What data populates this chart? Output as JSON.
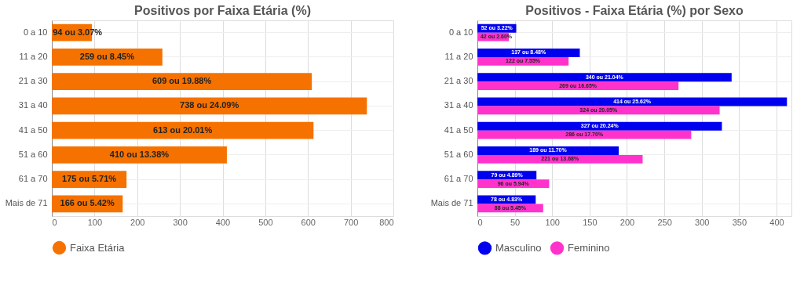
{
  "chart_data": [
    {
      "type": "bar",
      "orientation": "horizontal",
      "title": "Positivos por Faixa Etária (%)",
      "categories": [
        "0 a 10",
        "11 a 20",
        "21 a 30",
        "31 a 40",
        "41 a 50",
        "51 a 60",
        "61 a 70",
        "Mais de 71"
      ],
      "series": [
        {
          "name": "Faixa Etária",
          "color": "#f57200",
          "values": [
            94,
            259,
            609,
            738,
            613,
            410,
            175,
            166
          ],
          "value_labels": [
            "94 ou 3.07%",
            "259 ou 8.45%",
            "609 ou 19.88%",
            "738 ou 24.09%",
            "613 ou 20.01%",
            "410 ou 13.38%",
            "175 ou 5.71%",
            "166 ou 5.42%"
          ]
        }
      ],
      "xlim": [
        0,
        800
      ],
      "xticks": [
        0,
        100,
        200,
        300,
        400,
        500,
        600,
        700,
        800
      ],
      "grid": true,
      "legend": "bottom"
    },
    {
      "type": "bar",
      "orientation": "horizontal",
      "title": "Positivos - Faixa Etária (%) por Sexo",
      "categories": [
        "0 a 10",
        "11 a 20",
        "21 a 30",
        "31 a 40",
        "41 a 50",
        "51 a 60",
        "61 a 70",
        "Mais de 71"
      ],
      "series": [
        {
          "name": "Masculino",
          "color": "#0000ee",
          "values": [
            52,
            137,
            340,
            414,
            327,
            189,
            79,
            78
          ],
          "value_labels": [
            "52 ou 3.22%",
            "137 ou 8.48%",
            "340 ou 21.04%",
            "414 ou 25.62%",
            "327 ou 20.24%",
            "189 ou 11.70%",
            "79 ou 4.89%",
            "78 ou 4.83%"
          ]
        },
        {
          "name": "Feminino",
          "color": "#ff33cc",
          "values": [
            42,
            122,
            269,
            324,
            286,
            221,
            96,
            88
          ],
          "value_labels": [
            "42 ou 2.60%",
            "122 ou 7.55%",
            "269 ou 16.65%",
            "324 ou 20.05%",
            "286 ou 17.70%",
            "221 ou 13.68%",
            "96 ou 5.94%",
            "88 ou 5.45%"
          ]
        }
      ],
      "xlim": [
        0,
        420
      ],
      "xticks": [
        0,
        50,
        100,
        150,
        200,
        250,
        300,
        350,
        400
      ],
      "grid": true,
      "legend": "bottom"
    }
  ]
}
